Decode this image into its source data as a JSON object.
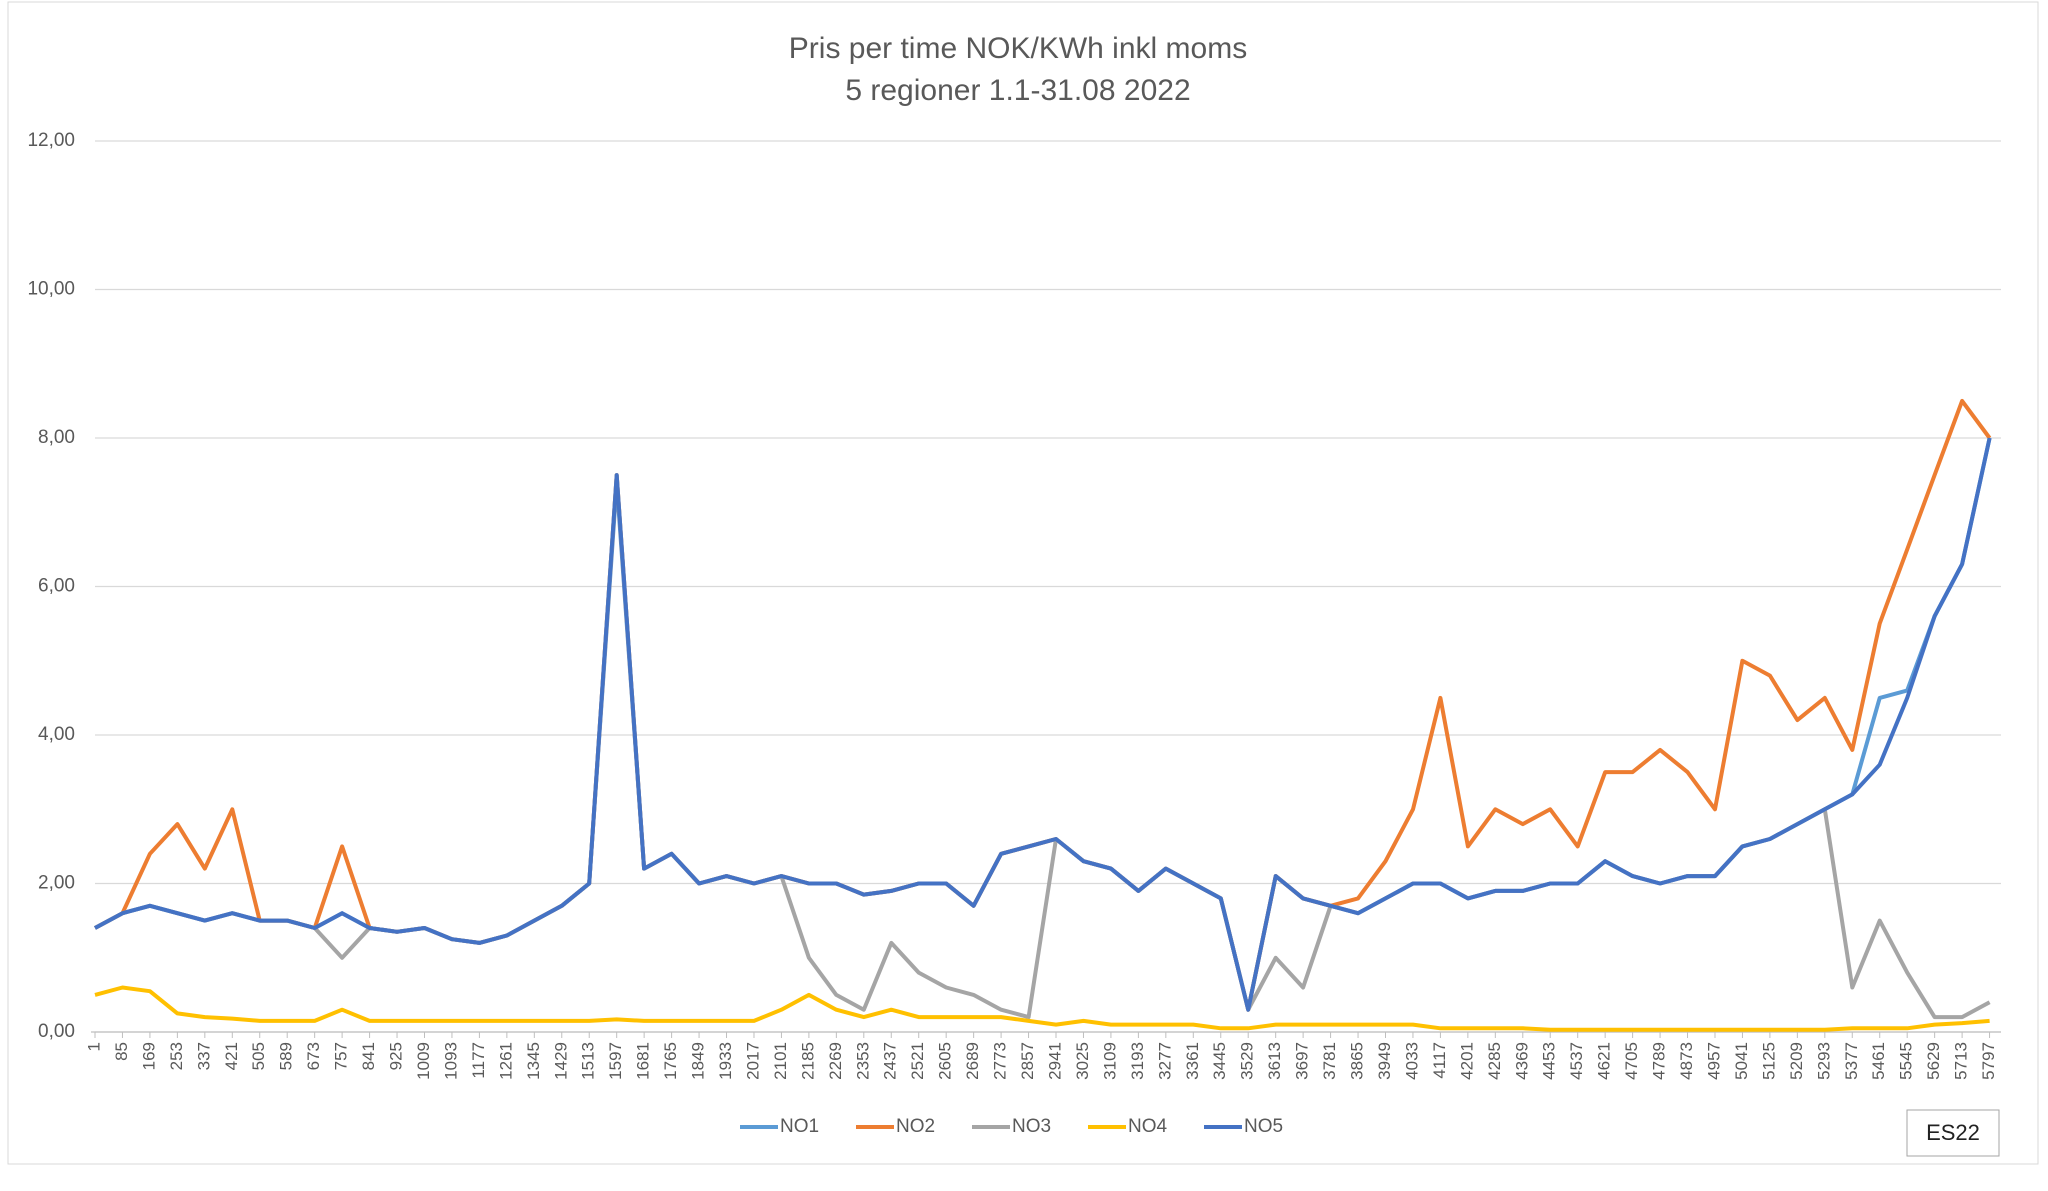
{
  "chart_data": {
    "type": "line",
    "title": "Pris per time NOK/KWh inkl moms",
    "subtitle": "5 regioner 1.1-31.08 2022",
    "annotation": "ES22",
    "legend": "bottom",
    "grid": true,
    "xlim": [
      1,
      5832
    ],
    "xticks": [
      1,
      85,
      169,
      253,
      337,
      421,
      505,
      589,
      673,
      757,
      841,
      925,
      1009,
      1093,
      1177,
      1261,
      1345,
      1429,
      1513,
      1597,
      1681,
      1765,
      1849,
      1933,
      2017,
      2101,
      2185,
      2269,
      2353,
      2437,
      2521,
      2605,
      2689,
      2773,
      2857,
      2941,
      3025,
      3109,
      3193,
      3277,
      3361,
      3445,
      3529,
      3613,
      3697,
      3781,
      3865,
      3949,
      4033,
      4117,
      4201,
      4285,
      4369,
      4453,
      4537,
      4621,
      4705,
      4789,
      4873,
      4957,
      5041,
      5125,
      5209,
      5293,
      5377,
      5461,
      5545,
      5629,
      5713,
      5797
    ],
    "x": [
      1,
      85,
      169,
      253,
      337,
      421,
      505,
      589,
      673,
      757,
      841,
      925,
      1009,
      1093,
      1177,
      1261,
      1345,
      1429,
      1513,
      1597,
      1681,
      1765,
      1849,
      1933,
      2017,
      2101,
      2185,
      2269,
      2353,
      2437,
      2521,
      2605,
      2689,
      2773,
      2857,
      2941,
      3025,
      3109,
      3193,
      3277,
      3361,
      3445,
      3529,
      3613,
      3697,
      3781,
      3865,
      3949,
      4033,
      4117,
      4201,
      4285,
      4369,
      4453,
      4537,
      4621,
      4705,
      4789,
      4873,
      4957,
      5041,
      5125,
      5209,
      5293,
      5377,
      5461,
      5545,
      5629,
      5713,
      5797
    ],
    "ylim": [
      0,
      12
    ],
    "yticks": [
      {
        "value": 0,
        "label": "0,00"
      },
      {
        "value": 2,
        "label": "2,00"
      },
      {
        "value": 4,
        "label": "4,00"
      },
      {
        "value": 6,
        "label": "6,00"
      },
      {
        "value": 8,
        "label": "8,00"
      },
      {
        "value": 10,
        "label": "10,00"
      },
      {
        "value": 12,
        "label": "12,00"
      }
    ],
    "series": [
      {
        "name": "NO1",
        "color": "#5b9bd5",
        "values": [
          1.4,
          1.6,
          1.7,
          1.6,
          1.5,
          1.6,
          1.5,
          1.5,
          1.4,
          1.6,
          1.4,
          1.35,
          1.4,
          1.25,
          1.2,
          1.3,
          1.5,
          1.7,
          2.0,
          7.4,
          2.2,
          2.4,
          2.0,
          2.1,
          2.0,
          2.1,
          2.0,
          2.0,
          1.85,
          1.9,
          2.0,
          2.0,
          1.7,
          2.4,
          2.5,
          2.6,
          2.3,
          2.2,
          1.9,
          2.2,
          2.0,
          1.8,
          0.3,
          2.1,
          1.8,
          1.7,
          1.6,
          1.8,
          2.0,
          2.0,
          1.8,
          1.9,
          1.9,
          2.0,
          2.0,
          2.3,
          2.1,
          2.0,
          2.1,
          2.1,
          2.5,
          2.6,
          2.8,
          3.0,
          3.2,
          4.5,
          4.6,
          5.6,
          6.3,
          8.0
        ]
      },
      {
        "name": "NO2",
        "color": "#ed7d31",
        "values": [
          1.4,
          1.6,
          2.4,
          2.8,
          2.2,
          3.0,
          1.5,
          1.5,
          1.4,
          2.5,
          1.4,
          1.35,
          1.4,
          1.25,
          1.2,
          1.3,
          1.5,
          1.7,
          2.0,
          7.5,
          2.2,
          2.4,
          2.0,
          2.1,
          2.0,
          2.1,
          2.0,
          2.0,
          1.85,
          1.9,
          2.0,
          2.0,
          1.7,
          2.4,
          2.5,
          2.6,
          2.3,
          2.2,
          1.9,
          2.2,
          2.0,
          1.8,
          0.3,
          2.1,
          1.8,
          1.7,
          1.8,
          2.3,
          3.0,
          4.5,
          2.5,
          3.0,
          2.8,
          3.0,
          2.5,
          3.5,
          3.5,
          3.8,
          3.5,
          3.0,
          5.0,
          4.8,
          4.2,
          4.5,
          3.8,
          5.5,
          6.5,
          7.5,
          8.5,
          8.0
        ]
      },
      {
        "name": "NO3",
        "color": "#a5a5a5",
        "values": [
          1.4,
          1.6,
          1.7,
          1.6,
          1.5,
          1.6,
          1.5,
          1.5,
          1.4,
          1.0,
          1.4,
          1.35,
          1.4,
          1.25,
          1.2,
          1.3,
          1.5,
          1.7,
          2.0,
          7.5,
          2.2,
          2.4,
          2.0,
          2.1,
          2.0,
          2.1,
          1.0,
          0.5,
          0.3,
          1.2,
          0.8,
          0.6,
          0.5,
          0.3,
          0.2,
          2.6,
          2.3,
          2.2,
          1.9,
          2.2,
          2.0,
          1.8,
          0.3,
          1.0,
          0.6,
          1.7,
          1.6,
          1.8,
          2.0,
          2.0,
          1.8,
          1.9,
          1.9,
          2.0,
          2.0,
          2.3,
          2.1,
          2.0,
          2.1,
          2.1,
          2.5,
          2.6,
          2.8,
          3.0,
          0.6,
          1.5,
          0.8,
          0.2,
          0.2,
          0.4
        ]
      },
      {
        "name": "NO4",
        "color": "#ffc000",
        "values": [
          0.5,
          0.6,
          0.55,
          0.25,
          0.2,
          0.18,
          0.15,
          0.15,
          0.15,
          0.3,
          0.15,
          0.15,
          0.15,
          0.15,
          0.15,
          0.15,
          0.15,
          0.15,
          0.15,
          0.17,
          0.15,
          0.15,
          0.15,
          0.15,
          0.15,
          0.3,
          0.5,
          0.3,
          0.2,
          0.3,
          0.2,
          0.2,
          0.2,
          0.2,
          0.15,
          0.1,
          0.15,
          0.1,
          0.1,
          0.1,
          0.1,
          0.05,
          0.05,
          0.1,
          0.1,
          0.1,
          0.1,
          0.1,
          0.1,
          0.05,
          0.05,
          0.05,
          0.05,
          0.03,
          0.03,
          0.03,
          0.03,
          0.03,
          0.03,
          0.03,
          0.03,
          0.03,
          0.03,
          0.03,
          0.05,
          0.05,
          0.05,
          0.1,
          0.12,
          0.15
        ]
      },
      {
        "name": "NO5",
        "color": "#4472c4",
        "values": [
          1.4,
          1.6,
          1.7,
          1.6,
          1.5,
          1.6,
          1.5,
          1.5,
          1.4,
          1.6,
          1.4,
          1.35,
          1.4,
          1.25,
          1.2,
          1.3,
          1.5,
          1.7,
          2.0,
          7.5,
          2.2,
          2.4,
          2.0,
          2.1,
          2.0,
          2.1,
          2.0,
          2.0,
          1.85,
          1.9,
          2.0,
          2.0,
          1.7,
          2.4,
          2.5,
          2.6,
          2.3,
          2.2,
          1.9,
          2.2,
          2.0,
          1.8,
          0.3,
          2.1,
          1.8,
          1.7,
          1.6,
          1.8,
          2.0,
          2.0,
          1.8,
          1.9,
          1.9,
          2.0,
          2.0,
          2.3,
          2.1,
          2.0,
          2.1,
          2.1,
          2.5,
          2.6,
          2.8,
          3.0,
          3.2,
          3.6,
          4.5,
          5.6,
          6.3,
          8.0
        ]
      }
    ]
  }
}
